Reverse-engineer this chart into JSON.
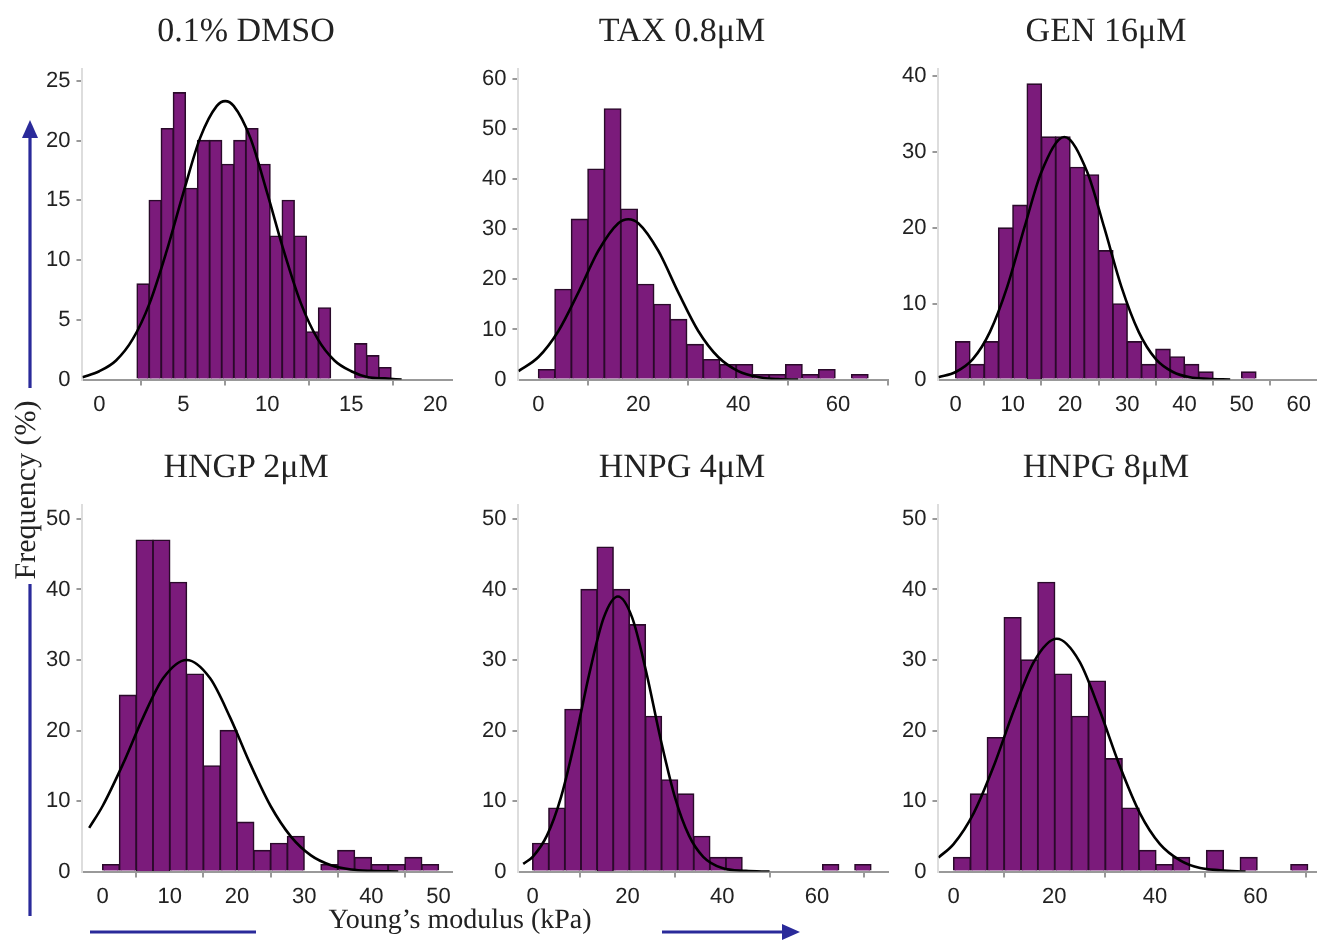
{
  "chart_data": [
    {
      "type": "histogram",
      "title": "0.1% DMSO",
      "bins": [
        2.25,
        2.97,
        3.69,
        4.41,
        5.13,
        5.85,
        6.57,
        7.29,
        8.01,
        8.73,
        9.45,
        10.17,
        10.89,
        11.61,
        12.33,
        13.05,
        13.77,
        14.49,
        15.21,
        15.93,
        16.65,
        17.37
      ],
      "xlim": [
        -1,
        21
      ],
      "xticks": [
        0,
        5,
        10,
        15,
        20
      ],
      "ylim": [
        0,
        26
      ],
      "yticks": [
        0,
        5,
        10,
        15,
        20,
        25
      ],
      "series": [
        {
          "type": "histogram",
          "color": "#7b1b7b",
          "values": [
            8,
            15,
            21,
            24,
            16,
            20,
            20,
            18,
            20,
            21,
            18,
            12,
            15,
            12,
            4,
            6,
            0,
            0,
            3,
            2,
            1
          ]
        },
        {
          "type": "line",
          "color": "#000000",
          "x": [
            -1,
            0,
            1,
            2,
            3,
            4,
            5,
            6,
            7,
            7.5,
            8,
            9,
            10,
            11,
            12,
            13,
            14,
            15,
            16,
            17,
            18
          ],
          "values": [
            0.2,
            0.7,
            1.6,
            3.4,
            6.4,
            10.7,
            15.6,
            20.2,
            22.9,
            23.3,
            22.9,
            20.2,
            15.6,
            10.7,
            6.4,
            3.4,
            1.6,
            0.7,
            0.2,
            0.1,
            0
          ]
        }
      ]
    },
    {
      "type": "histogram",
      "title": "TAX 0.8μM",
      "bins": [
        0,
        3.3,
        6.6,
        9.9,
        13.2,
        16.5,
        19.8,
        23.1,
        26.4,
        29.7,
        33,
        36.3,
        39.6,
        42.9,
        46.2,
        49.5,
        52.8,
        56.1,
        59.4,
        62.7,
        66
      ],
      "xlim": [
        -4,
        70
      ],
      "xticks": [
        0,
        20,
        40,
        60
      ],
      "ylim": [
        0,
        62
      ],
      "yticks": [
        0,
        10,
        20,
        30,
        40,
        50,
        60
      ],
      "series": [
        {
          "type": "histogram",
          "color": "#7b1b7b",
          "values": [
            2,
            18,
            32,
            42,
            54,
            34,
            19,
            15,
            12,
            7,
            4,
            3,
            3,
            1,
            1,
            3,
            1,
            2,
            0,
            1
          ]
        },
        {
          "type": "line",
          "color": "#000000",
          "x": [
            -4,
            0,
            4,
            8,
            12,
            16,
            18,
            20,
            24,
            28,
            32,
            36,
            40,
            44,
            48,
            52
          ],
          "values": [
            1.7,
            4.5,
            9.7,
            17.4,
            25.7,
            31.2,
            32,
            31.2,
            25.7,
            17.4,
            9.7,
            4.5,
            1.7,
            0.5,
            0.1,
            0
          ]
        }
      ]
    },
    {
      "type": "histogram",
      "title": "GEN 16μM",
      "bins": [
        0,
        2.5,
        5,
        7.5,
        10,
        12.5,
        15,
        17.5,
        20,
        22.5,
        25,
        27.5,
        30,
        32.5,
        35,
        37.5,
        40,
        42.5,
        45,
        47.5,
        50,
        52.5
      ],
      "xlim": [
        -3,
        63
      ],
      "xticks": [
        0,
        10,
        20,
        30,
        40,
        50,
        60
      ],
      "ylim": [
        0,
        41
      ],
      "yticks": [
        0,
        10,
        20,
        30,
        40
      ],
      "series": [
        {
          "type": "histogram",
          "color": "#7b1b7b",
          "values": [
            5,
            2,
            5,
            20,
            23,
            39,
            32,
            32,
            28,
            27,
            17,
            10,
            5,
            2,
            4,
            3,
            2,
            1,
            0,
            0,
            1
          ]
        },
        {
          "type": "line",
          "color": "#000000",
          "x": [
            -3,
            0,
            3,
            6,
            9,
            12,
            15,
            19,
            23,
            26,
            29,
            32,
            35,
            38,
            41,
            44,
            48
          ],
          "values": [
            0.3,
            1,
            2.7,
            6.3,
            12.2,
            20,
            27.4,
            32,
            27.4,
            20,
            12.2,
            6.3,
            2.7,
            1,
            0.3,
            0.1,
            0
          ]
        }
      ]
    },
    {
      "type": "histogram",
      "title": "HNGP 2μM",
      "ylabel": "Frequency (%)",
      "bins": [
        0,
        2.5,
        5,
        7.5,
        10,
        12.5,
        15,
        17.5,
        20,
        22.5,
        25,
        27.5,
        30,
        32.5,
        35,
        37.5,
        40,
        42.5,
        45,
        47.5,
        50
      ],
      "xlim": [
        -3,
        52
      ],
      "xticks": [
        0,
        10,
        20,
        30,
        40,
        50
      ],
      "ylim": [
        0,
        52
      ],
      "yticks": [
        0,
        10,
        20,
        30,
        40,
        50
      ],
      "series": [
        {
          "type": "histogram",
          "color": "#7b1b7b",
          "values": [
            1,
            25,
            47,
            47,
            41,
            28,
            15,
            20,
            7,
            3,
            4,
            5,
            0,
            1,
            3,
            2,
            1,
            1,
            2,
            1
          ]
        },
        {
          "type": "line",
          "color": "#000000",
          "x": [
            -2,
            0,
            3,
            6,
            9,
            12.5,
            16,
            19,
            22,
            25,
            28,
            31,
            34,
            37,
            40,
            44
          ],
          "values": [
            6.2,
            9.3,
            15.2,
            21.8,
            27.4,
            30,
            27.4,
            21.8,
            15.2,
            9.3,
            5,
            2.3,
            0.9,
            0.3,
            0.1,
            0
          ]
        }
      ]
    },
    {
      "type": "histogram",
      "title": "HNPG 4μM",
      "xlabel": "Young’s modulus (kPa)",
      "bins": [
        0,
        3.4,
        6.8,
        10.2,
        13.6,
        17,
        20.4,
        23.8,
        27.2,
        30.6,
        34,
        37.4,
        40.8,
        44.2,
        47.6,
        51,
        54.4,
        57.8,
        61.2,
        64.6,
        68,
        71.4
      ],
      "xlim": [
        -3,
        75
      ],
      "xticks": [
        0,
        20,
        40,
        60
      ],
      "ylim": [
        0,
        52
      ],
      "yticks": [
        0,
        10,
        20,
        30,
        40,
        50
      ],
      "series": [
        {
          "type": "histogram",
          "color": "#7b1b7b",
          "values": [
            4,
            9,
            23,
            40,
            46,
            40,
            35,
            22,
            13,
            11,
            5,
            2,
            2,
            0,
            0,
            0,
            0,
            0,
            1,
            0,
            1
          ]
        },
        {
          "type": "line",
          "color": "#000000",
          "x": [
            -2,
            0,
            3,
            6,
            9,
            12,
            15,
            18,
            21,
            24,
            27,
            30,
            33,
            36,
            40,
            45,
            50
          ],
          "values": [
            1.1,
            2.1,
            5.1,
            10.6,
            18.8,
            28.2,
            36,
            39,
            36,
            28.2,
            18.8,
            10.6,
            5.1,
            2.1,
            0.5,
            0.1,
            0
          ]
        }
      ]
    },
    {
      "type": "histogram",
      "title": "HNPG 8μM",
      "bins": [
        0,
        3.35,
        6.7,
        10.05,
        13.4,
        16.75,
        20.1,
        23.45,
        26.8,
        30.15,
        33.5,
        36.85,
        40.2,
        43.55,
        46.9,
        50.25,
        53.6,
        56.95,
        60.3,
        63.65,
        67,
        70.35
      ],
      "xlim": [
        -3,
        72
      ],
      "xticks": [
        0,
        20,
        40,
        60
      ],
      "ylim": [
        0,
        52
      ],
      "yticks": [
        0,
        10,
        20,
        30,
        40,
        50
      ],
      "series": [
        {
          "type": "histogram",
          "color": "#7b1b7b",
          "values": [
            2,
            11,
            19,
            36,
            30,
            41,
            28,
            22,
            27,
            16,
            9,
            3,
            1,
            2,
            0,
            3,
            0,
            2,
            0,
            0,
            1
          ]
        },
        {
          "type": "line",
          "color": "#000000",
          "x": [
            -3,
            0,
            4,
            8,
            12,
            16,
            20.5,
            25,
            29,
            33,
            37,
            41,
            45,
            49,
            53,
            58
          ],
          "values": [
            2,
            3.9,
            8.3,
            15,
            22.9,
            29.8,
            33,
            29.8,
            22.9,
            15,
            8.3,
            3.9,
            1.6,
            0.5,
            0.2,
            0
          ]
        }
      ]
    }
  ]
}
